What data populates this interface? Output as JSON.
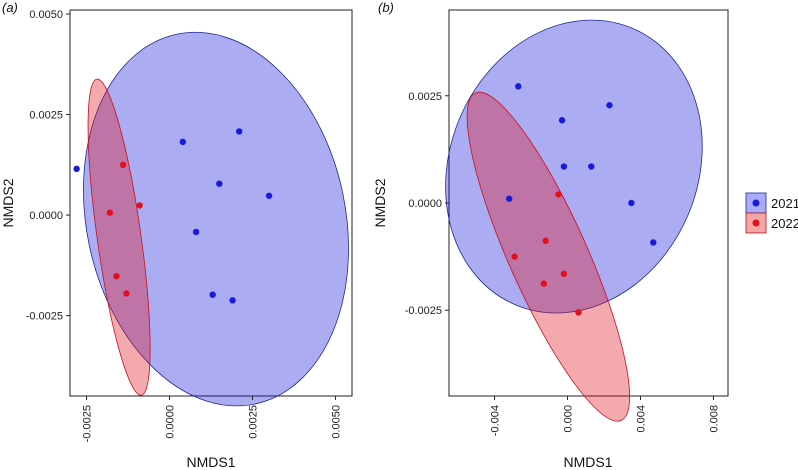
{
  "legend": {
    "entries": [
      {
        "label": "2021",
        "color": "#1a1adb",
        "fill": "#aaaaff"
      },
      {
        "label": "2022",
        "color": "#e0101e",
        "fill": "#f4a6a6"
      }
    ]
  },
  "chart_data": [
    {
      "type": "scatter",
      "panel_label": "(a)",
      "xlabel": "NMDS1",
      "ylabel": "NMDS2",
      "xlim": [
        -0.003,
        0.0055
      ],
      "ylim": [
        -0.0045,
        0.0051
      ],
      "xticks": [
        -0.0025,
        0.0,
        0.0025,
        0.005
      ],
      "xtick_labels": [
        "-0.0025",
        "0.0000",
        "0.0025",
        "0.0050"
      ],
      "yticks": [
        -0.0025,
        0.0,
        0.0025,
        0.005
      ],
      "ytick_labels": [
        "-0.0025",
        "0.0000",
        "0.0025",
        "0.0050"
      ],
      "series": [
        {
          "name": "2021",
          "points": [
            [
              -0.0028,
              0.00115
            ],
            [
              0.0004,
              0.00182
            ],
            [
              0.0021,
              0.00208
            ],
            [
              0.0015,
              0.00078
            ],
            [
              0.003,
              0.00048
            ],
            [
              0.0008,
              -0.00042
            ],
            [
              0.0013,
              -0.00198
            ],
            [
              0.0019,
              -0.00212
            ]
          ],
          "ellipse": {
            "cx": 0.0014,
            "cy": -0.0001,
            "rx": 0.0039,
            "ry": 0.0047,
            "angle": 12
          }
        },
        {
          "name": "2022",
          "points": [
            [
              -0.0014,
              0.00125
            ],
            [
              -0.0009,
              0.00024
            ],
            [
              -0.0018,
              6e-05
            ],
            [
              -0.0016,
              -0.00152
            ],
            [
              -0.0013,
              -0.00195
            ]
          ],
          "ellipse": {
            "cx": -0.00152,
            "cy": -0.00055,
            "rx": 0.00066,
            "ry": 0.00397,
            "angle": 8
          }
        }
      ]
    },
    {
      "type": "scatter",
      "panel_label": "(b)",
      "xlabel": "NMDS1",
      "ylabel": "NMDS2",
      "xlim": [
        -0.0065,
        0.0088
      ],
      "ylim": [
        -0.0045,
        0.0045
      ],
      "xticks": [
        -0.004,
        0.0,
        0.004,
        0.008
      ],
      "xtick_labels": [
        "-0.004",
        "0.000",
        "0.004",
        "0.008"
      ],
      "yticks": [
        -0.0025,
        0.0,
        0.0025
      ],
      "ytick_labels": [
        "-0.0025",
        "0.0000",
        "0.0025"
      ],
      "series": [
        {
          "name": "2021",
          "points": [
            [
              -0.0027,
              0.00272
            ],
            [
              -0.0003,
              0.00193
            ],
            [
              0.0023,
              0.00228
            ],
            [
              -0.0002,
              0.00085
            ],
            [
              0.0013,
              0.00085
            ],
            [
              -0.0032,
              0.0001
            ],
            [
              0.0035,
              0.0
            ],
            [
              0.0047,
              -0.00092
            ]
          ],
          "ellipse": {
            "cx": 0.00035,
            "cy": 0.00085,
            "rx": 0.0068,
            "ry": 0.0035,
            "angle": -23
          }
        },
        {
          "name": "2022",
          "points": [
            [
              -0.0005,
              0.0002
            ],
            [
              -0.0012,
              -0.00088
            ],
            [
              -0.0029,
              -0.00125
            ],
            [
              -0.0013,
              -0.00188
            ],
            [
              -0.0002,
              -0.00165
            ],
            [
              0.0006,
              -0.00255
            ]
          ],
          "ellipse": {
            "cx": -0.00105,
            "cy": -0.00125,
            "rx": 0.00215,
            "ry": 0.00418,
            "angle": 24
          }
        }
      ]
    }
  ]
}
